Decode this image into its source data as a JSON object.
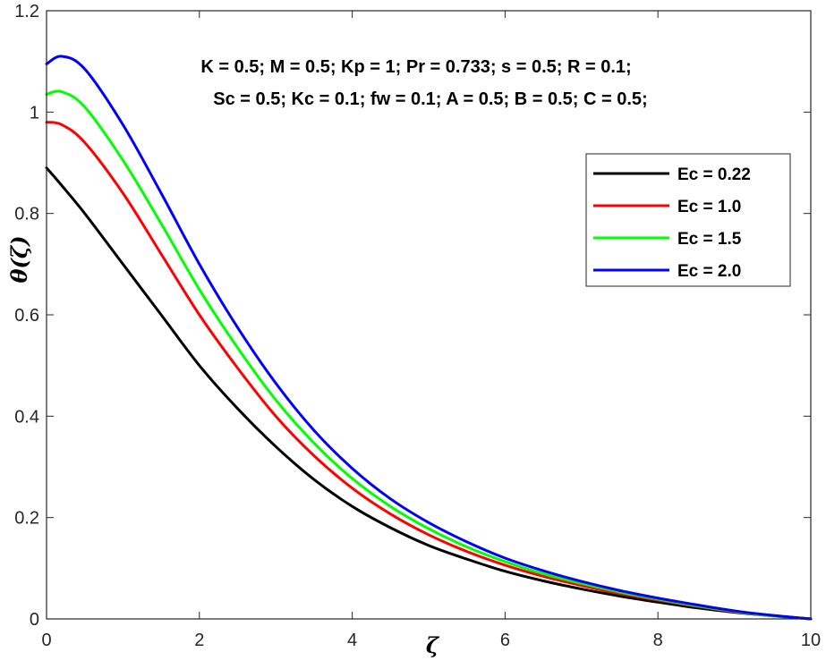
{
  "chart_data": {
    "type": "line",
    "title": "",
    "xlabel": "ζ",
    "ylabel": "θ(ζ)",
    "xlim": [
      0,
      10
    ],
    "ylim": [
      0,
      1.2
    ],
    "xticks": [
      0,
      2,
      4,
      6,
      8,
      10
    ],
    "yticks": [
      0,
      0.2,
      0.4,
      0.6,
      0.8,
      1,
      1.2
    ],
    "xtick_labels": [
      "0",
      "2",
      "4",
      "6",
      "8",
      "10"
    ],
    "ytick_labels": [
      "0",
      "0.2",
      "0.4",
      "0.6",
      "0.8",
      "1",
      "1.2"
    ],
    "grid": false,
    "legend_position": "top-right",
    "annotations": [
      "K = 0.5; M = 0.5; Kp = 1; Pr = 0.733; s = 0.5; R = 0.1;",
      "Sc = 0.5; Kc = 0.1; fw = 0.1; A = 0.5; B = 0.5; C = 0.5;"
    ],
    "x": [
      0,
      0.2,
      0.5,
      1,
      1.5,
      2,
      2.5,
      3,
      3.5,
      4,
      4.5,
      5,
      5.5,
      6,
      6.5,
      7,
      7.5,
      8,
      8.5,
      9,
      9.5,
      10
    ],
    "series": [
      {
        "name": "Ec = 0.22",
        "color": "#000000",
        "values": [
          0.89,
          0.855,
          0.8,
          0.7,
          0.6,
          0.5,
          0.415,
          0.34,
          0.275,
          0.222,
          0.18,
          0.145,
          0.118,
          0.094,
          0.075,
          0.059,
          0.045,
          0.033,
          0.022,
          0.013,
          0.006,
          0.0
        ]
      },
      {
        "name": "Ec = 1.0",
        "color": "#ff0000",
        "values": [
          0.98,
          0.975,
          0.94,
          0.84,
          0.72,
          0.6,
          0.495,
          0.4,
          0.322,
          0.258,
          0.207,
          0.166,
          0.133,
          0.106,
          0.084,
          0.066,
          0.05,
          0.037,
          0.025,
          0.014,
          0.006,
          0.0
        ]
      },
      {
        "name": "Ec = 1.5",
        "color": "#00ff00",
        "values": [
          1.035,
          1.04,
          1.01,
          0.905,
          0.78,
          0.65,
          0.535,
          0.432,
          0.347,
          0.277,
          0.222,
          0.178,
          0.142,
          0.113,
          0.089,
          0.07,
          0.053,
          0.039,
          0.026,
          0.015,
          0.006,
          0.0
        ]
      },
      {
        "name": "Ec = 2.0",
        "color": "#0000ff",
        "values": [
          1.095,
          1.11,
          1.085,
          0.975,
          0.84,
          0.7,
          0.575,
          0.465,
          0.372,
          0.297,
          0.237,
          0.19,
          0.152,
          0.12,
          0.095,
          0.074,
          0.056,
          0.041,
          0.028,
          0.016,
          0.007,
          0.0
        ]
      }
    ]
  }
}
